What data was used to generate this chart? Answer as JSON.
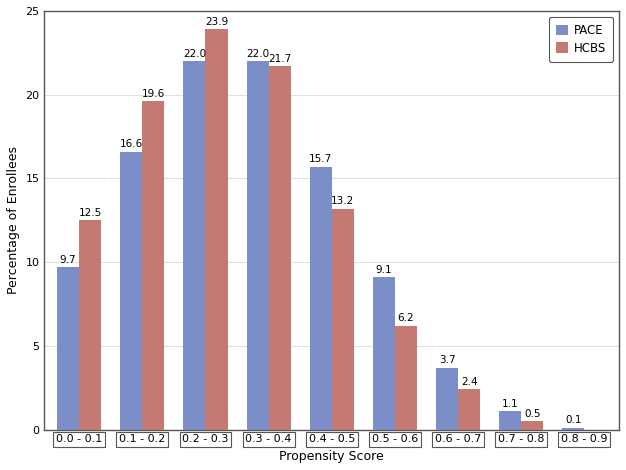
{
  "categories": [
    "0.0 - 0.1",
    "0.1 - 0.2",
    "0.2 - 0.3",
    "0.3 - 0.4",
    "0.4 - 0.5",
    "0.5 - 0.6",
    "0.6 - 0.7",
    "0.7 - 0.8",
    "0.8 - 0.9"
  ],
  "pace_values": [
    9.7,
    16.6,
    22.0,
    22.0,
    15.7,
    9.1,
    3.7,
    1.1,
    0.1
  ],
  "hcbs_values": [
    12.5,
    19.6,
    23.9,
    21.7,
    13.2,
    6.2,
    2.4,
    0.5,
    null
  ],
  "pace_color": "#7b8ec8",
  "hcbs_color": "#c47a72",
  "xlabel": "Propensity Score",
  "ylabel": "Percentage of Enrollees",
  "ylim": [
    0,
    25
  ],
  "yticks": [
    0,
    5,
    10,
    15,
    20,
    25
  ],
  "legend_labels": [
    "PACE",
    "HCBS"
  ],
  "bar_width": 0.35,
  "label_fontsize": 7.5,
  "axis_label_fontsize": 9,
  "tick_fontsize": 8,
  "legend_fontsize": 8.5,
  "background_color": "#ffffff",
  "grid_color": "#e0e0e0",
  "spine_color": "#555555"
}
